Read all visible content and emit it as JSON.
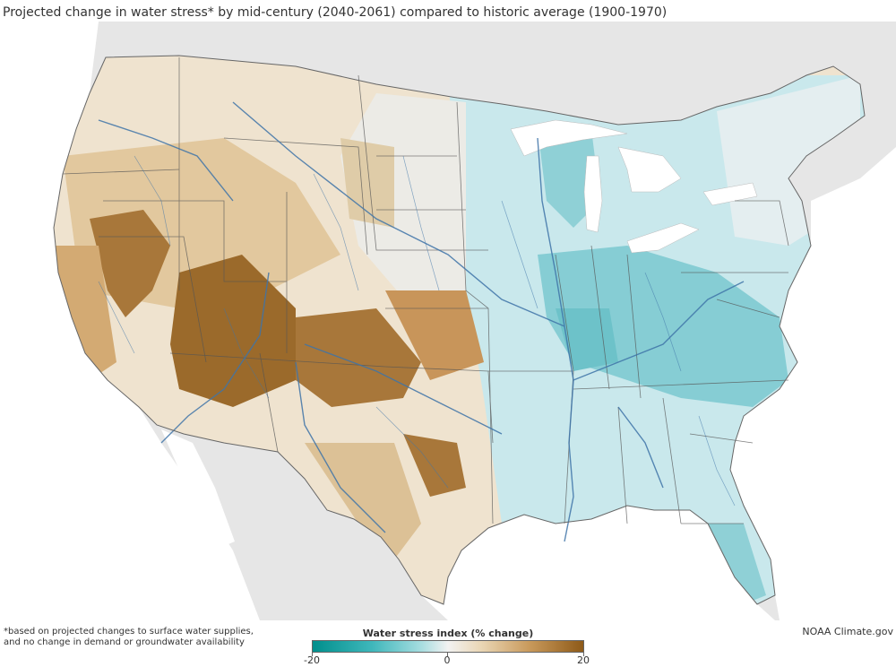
{
  "title": "Projected change in water stress* by mid-century (2040-2061) compared to  historic average (1900-1970)",
  "footnote": {
    "line1": "*based on projected changes to surface water supplies,",
    "line2": "and no change in demand or groundwater availability"
  },
  "credit": "NOAA Climate.gov",
  "legend": {
    "title": "Water stress index (% change)",
    "min_label": "-20",
    "mid_label": "0",
    "max_label": "20",
    "range": [
      -20,
      20
    ],
    "colors": {
      "decrease_strong": "#008f8c",
      "decrease_light": "#a6dde0",
      "neutral": "#f2f2f2",
      "increase_light": "#ead7b6",
      "increase_strong": "#8e5a18"
    }
  },
  "map": {
    "land_outside_us_color": "#e6e6e6",
    "water_color": "#ffffff",
    "border_color": "#555555",
    "river_color": "#3f74a8"
  }
}
